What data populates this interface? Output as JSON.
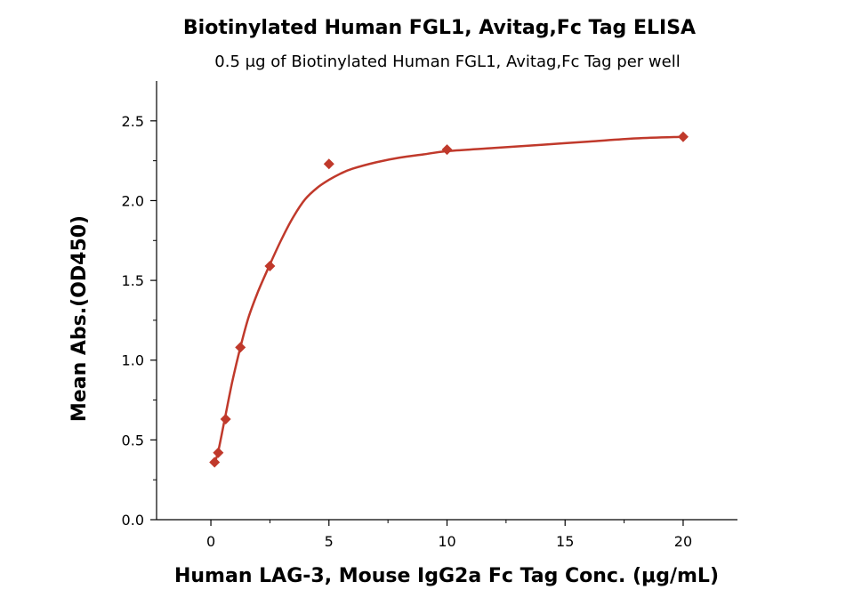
{
  "chart_data": {
    "type": "scatter",
    "title": "Biotinylated Human FGL1, Avitag,Fc Tag ELISA",
    "subtitle": "0.5 μg of Biotinylated Human FGL1, Avitag,Fc Tag per well",
    "xlabel": "Human LAG-3, Mouse IgG2a Fc Tag Conc. (μg/mL)",
    "ylabel": "Mean Abs.(OD450)",
    "xlim": [
      -2.3,
      22.3
    ],
    "ylim": [
      0,
      2.75
    ],
    "x_ticks": [
      0,
      5,
      10,
      15,
      20
    ],
    "x_tick_labels": [
      "0",
      "5",
      "10",
      "15",
      "20"
    ],
    "y_ticks": [
      0,
      0.5,
      1.0,
      1.5,
      2.0,
      2.5
    ],
    "y_tick_labels": [
      "0.0",
      "0.5",
      "1.0",
      "1.5",
      "2.0",
      "2.5"
    ],
    "grid": false,
    "series": [
      {
        "name": "measured",
        "marker": "diamond",
        "color": "#c0392b",
        "x": [
          0.156,
          0.3125,
          0.625,
          1.25,
          2.5,
          5,
          10,
          20
        ],
        "y": [
          0.36,
          0.42,
          0.63,
          1.08,
          1.59,
          2.23,
          2.32,
          2.4
        ]
      }
    ],
    "fit_curve": {
      "name": "fit",
      "color": "#c0392b",
      "x": [
        0.15,
        0.3,
        0.6,
        0.9,
        1.25,
        1.6,
        2.0,
        2.5,
        3.0,
        3.5,
        4.0,
        4.5,
        5.0,
        5.5,
        6.0,
        7.0,
        8.0,
        9.0,
        10.0,
        12.0,
        14.0,
        16.0,
        18.0,
        20.0
      ],
      "y": [
        0.36,
        0.42,
        0.64,
        0.86,
        1.08,
        1.27,
        1.43,
        1.6,
        1.76,
        1.9,
        2.01,
        2.08,
        2.13,
        2.17,
        2.2,
        2.24,
        2.27,
        2.29,
        2.31,
        2.33,
        2.35,
        2.37,
        2.39,
        2.4
      ]
    }
  }
}
